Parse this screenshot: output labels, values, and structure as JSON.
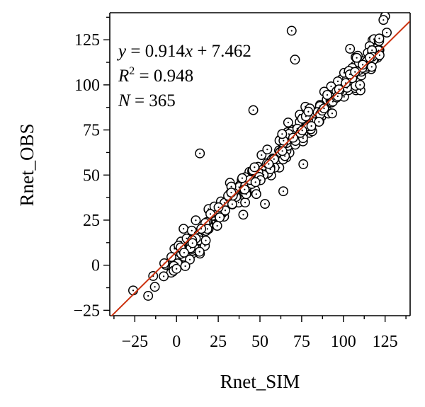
{
  "chart_data": {
    "type": "scatter",
    "title": "",
    "xlabel": "Rnet_SIM",
    "ylabel": "Rnet_OBS",
    "xlim": [
      -40,
      140
    ],
    "ylim": [
      -28,
      140
    ],
    "xticks": [
      -25,
      0,
      25,
      50,
      75,
      100,
      125
    ],
    "yticks": [
      -25,
      0,
      25,
      50,
      75,
      100,
      125
    ],
    "x_tick_labels": [
      "−25",
      "0",
      "25",
      "50",
      "75",
      "100",
      "125"
    ],
    "y_tick_labels": [
      "−25",
      "0",
      "25",
      "50",
      "75",
      "100",
      "125"
    ],
    "grid": false,
    "annotations": {
      "equation": [
        "y",
        " = 0.914",
        "x",
        " + 7.462"
      ],
      "r2": [
        "R",
        "2",
        " = 0.948"
      ],
      "n": [
        "N",
        " = 365"
      ]
    },
    "fit_line": {
      "slope": 0.914,
      "intercept": 7.462,
      "color": "#cc3311"
    },
    "point_style": {
      "stroke": "#000000",
      "fill": "#ffffff"
    },
    "outliers": [
      {
        "x": -26,
        "y": -14
      },
      {
        "x": -17,
        "y": -17
      },
      {
        "x": -14,
        "y": -6
      },
      {
        "x": -13,
        "y": -12
      },
      {
        "x": 14,
        "y": 62
      },
      {
        "x": 46,
        "y": 86
      },
      {
        "x": 69,
        "y": 130
      },
      {
        "x": 71,
        "y": 114
      },
      {
        "x": 64,
        "y": 41
      },
      {
        "x": 53,
        "y": 34
      },
      {
        "x": 40,
        "y": 28
      },
      {
        "x": 76,
        "y": 56
      },
      {
        "x": 125,
        "y": 138
      },
      {
        "x": 124,
        "y": 136
      },
      {
        "x": 126,
        "y": 129
      },
      {
        "x": 104,
        "y": 120
      },
      {
        "x": 117,
        "y": 110
      },
      {
        "x": 110,
        "y": 100
      },
      {
        "x": 108,
        "y": 115
      },
      {
        "x": 0,
        "y": -2
      }
    ],
    "n_points": 365,
    "cloud": {
      "x_range": [
        -8,
        122
      ],
      "slope": 0.96,
      "intercept": 4.0,
      "spread": 4.2
    }
  }
}
